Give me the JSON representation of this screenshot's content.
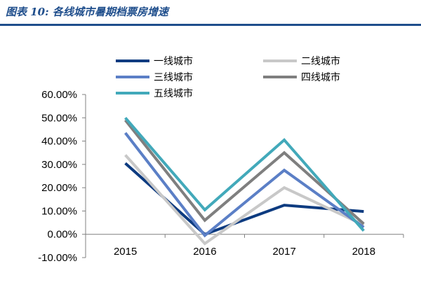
{
  "figure": {
    "title": "图表 10:  各线城市暑期档票房增速"
  },
  "colors": {
    "title": "#1f4e8c",
    "axis": "#808080"
  },
  "chart_data": {
    "type": "line",
    "title": "",
    "xlabel": "",
    "ylabel": "",
    "categories": [
      "2015",
      "2016",
      "2017",
      "2018"
    ],
    "ylim": [
      -10,
      60
    ],
    "yticks": [
      -10,
      0,
      10,
      20,
      30,
      40,
      50,
      60
    ],
    "ytick_labels": [
      "-10.00%",
      "0.00%",
      "10.00%",
      "20.00%",
      "30.00%",
      "40.00%",
      "50.00%",
      "60.00%"
    ],
    "legend_position": "top",
    "grid": false,
    "series": [
      {
        "name": "一线城市",
        "color": "#0d3b80",
        "values": [
          30.5,
          0.0,
          12.5,
          9.8
        ]
      },
      {
        "name": "二线城市",
        "color": "#c8c8c8",
        "values": [
          34.0,
          -4.0,
          20.0,
          4.0
        ]
      },
      {
        "name": "三线城市",
        "color": "#5b7fc6",
        "values": [
          43.5,
          -0.5,
          27.5,
          3.0
        ]
      },
      {
        "name": "四线城市",
        "color": "#7f7f7f",
        "values": [
          49.0,
          6.0,
          35.0,
          4.5
        ]
      },
      {
        "name": "五线城市",
        "color": "#42a9ba",
        "values": [
          50.0,
          10.5,
          40.5,
          1.5
        ]
      }
    ]
  }
}
